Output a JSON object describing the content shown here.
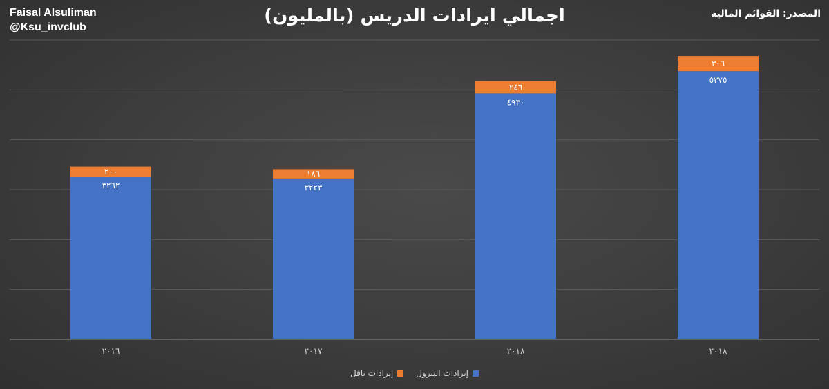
{
  "header": {
    "author_name": "Faisal Alsuliman",
    "author_handle": "@Ksu_invclub",
    "title": "اجمالي ايرادات الدريس (بالمليون)",
    "source": "المصدر: القوائم المالية"
  },
  "colors": {
    "petroleum": "#4472C4",
    "transport": "#ED7D31",
    "grid": "#5a5a5a",
    "axis": "#8c8c8c"
  },
  "chart_data": {
    "type": "bar",
    "stacked": true,
    "categories": [
      "٢٠١٦",
      "٢٠١٧",
      "٢٠١٨",
      "٢٠١٨"
    ],
    "series": [
      {
        "name": "إيرادات البترول",
        "values": [
          3262,
          3223,
          4930,
          5375
        ],
        "labels": [
          "٣٢٦٢",
          "٣٢٢٣",
          "٤٩٣٠",
          "٥٣٧٥"
        ],
        "color": "#4472C4"
      },
      {
        "name": "إيرادات ناقل",
        "values": [
          200,
          186,
          246,
          306
        ],
        "labels": [
          "٢٠٠",
          "١٨٦",
          "٢٤٦",
          "٣٠٦"
        ],
        "color": "#ED7D31"
      }
    ],
    "ylim": [
      0,
      6000
    ],
    "grid": true,
    "legend_position": "bottom"
  }
}
